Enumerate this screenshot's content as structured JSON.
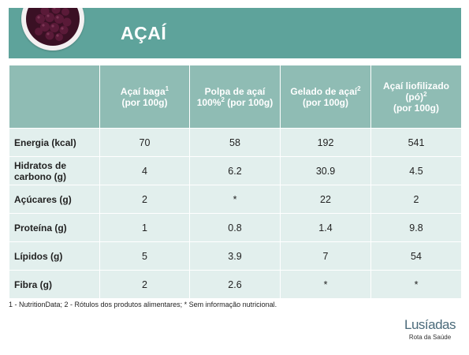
{
  "header": {
    "title": "AÇAÍ",
    "bg_color": "#5ea39b",
    "image_icon": "acai-bowl-icon"
  },
  "table": {
    "columns": [
      {
        "label": "",
        "sup": "",
        "suffix": ""
      },
      {
        "label": "Açaí baga",
        "sup": "1",
        "suffix": "(por 100g)"
      },
      {
        "label": "Polpa de açaí 100%",
        "sup": "2",
        "suffix": "(por 100g)"
      },
      {
        "label": "Gelado de açaí",
        "sup": "2",
        "suffix": "(por 100g)"
      },
      {
        "label": "Açaí liofilizado (pó)",
        "sup": "2",
        "suffix": "(por 100g)"
      }
    ],
    "rows": [
      {
        "label": "Energia (kcal)",
        "values": [
          "70",
          "58",
          "192",
          "541"
        ]
      },
      {
        "label": "Hidratos de carbono (g)",
        "values": [
          "4",
          "6.2",
          "30.9",
          "4.5"
        ]
      },
      {
        "label": "Açúcares (g)",
        "values": [
          "2",
          "*",
          "22",
          "2"
        ]
      },
      {
        "label": "Proteína (g)",
        "values": [
          "1",
          "0.8",
          "1.4",
          "9.8"
        ]
      },
      {
        "label": "Lípidos (g)",
        "values": [
          "5",
          "3.9",
          "7",
          "54"
        ]
      },
      {
        "label": "Fibra (g)",
        "values": [
          "2",
          "2.6",
          "*",
          "*"
        ]
      }
    ],
    "header_color": "#8fbcb4",
    "cell_color": "#e2efed"
  },
  "footnote": "1 - NutritionData; 2 - Rótulos dos produtos alimentares; * Sem informação nutricional.",
  "logo": {
    "brand": "Lusíadas",
    "tagline": "Rota da Saúde"
  }
}
